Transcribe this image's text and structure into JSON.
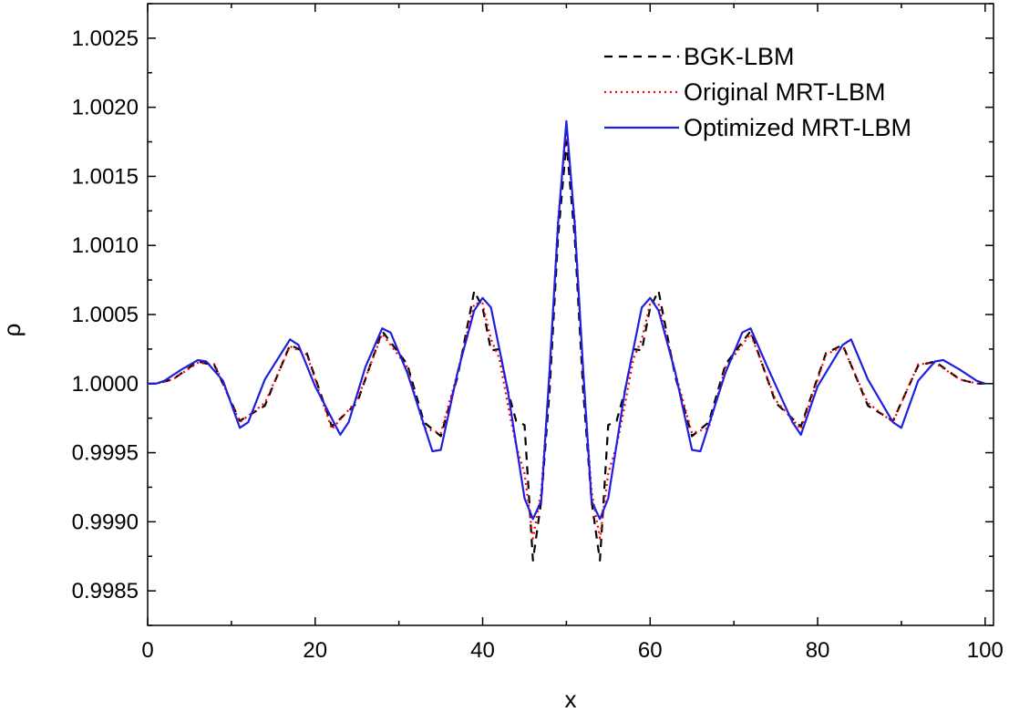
{
  "chart_data": {
    "type": "line",
    "xlabel": "x",
    "ylabel": "ρ",
    "xlim": [
      0,
      101
    ],
    "ylim": [
      0.99825,
      1.00275
    ],
    "xticks": [
      0,
      20,
      40,
      60,
      80,
      100
    ],
    "xtick_labels": [
      "0",
      "20",
      "40",
      "60",
      "80",
      "100"
    ],
    "yticks": [
      0.9985,
      0.999,
      0.9995,
      1.0,
      1.0005,
      1.001,
      1.0015,
      1.002,
      1.0025
    ],
    "ytick_labels": [
      "0.9985",
      "0.9990",
      "0.9995",
      "1.0000",
      "1.0005",
      "1.0010",
      "1.0015",
      "1.0020",
      "1.0025"
    ],
    "legend_position": "top-right",
    "grid": false,
    "series": [
      {
        "name": "BGK-LBM",
        "color": "#000000",
        "style": "dashed",
        "x": [
          0,
          1,
          3,
          6,
          8,
          11,
          14,
          17,
          19,
          22,
          25,
          28,
          31,
          33,
          35,
          37,
          39,
          40,
          41,
          42,
          43,
          44,
          45,
          46,
          47,
          48,
          49,
          50,
          51,
          52,
          53,
          54,
          55,
          56,
          57,
          58,
          59,
          60,
          61,
          63,
          65,
          67,
          69,
          72,
          75,
          78,
          81,
          83,
          86,
          89,
          92,
          94,
          97,
          99,
          100
        ],
        "y": [
          1.0,
          1.0,
          1.00003,
          1.00016,
          1.00013,
          0.99973,
          0.99984,
          1.00028,
          1.00022,
          0.99969,
          0.99986,
          1.00038,
          1.00014,
          0.99972,
          0.99962,
          1.00005,
          1.00067,
          1.00055,
          1.00024,
          1.00025,
          0.99995,
          0.99973,
          0.9997,
          0.99872,
          0.99915,
          0.99995,
          1.00105,
          1.00175,
          1.00105,
          0.99995,
          0.99915,
          0.99872,
          0.9997,
          0.99973,
          0.99995,
          1.00025,
          1.00024,
          1.00055,
          1.00067,
          1.00005,
          0.99962,
          0.99972,
          1.00014,
          1.00038,
          0.99986,
          0.99969,
          1.00022,
          1.00028,
          0.99984,
          0.99973,
          1.00013,
          1.00016,
          1.00003,
          1.0,
          1.0
        ]
      },
      {
        "name": "Original MRT-LBM",
        "color": "#ff0000",
        "style": "dotted",
        "x": [
          0,
          1,
          3,
          6,
          8,
          11,
          14,
          17,
          19,
          22,
          25,
          28,
          31,
          33,
          35,
          37,
          39,
          40,
          41,
          42,
          43,
          44,
          45,
          46,
          47,
          48,
          49,
          50,
          51,
          52,
          53,
          54,
          55,
          56,
          57,
          58,
          59,
          60,
          61,
          63,
          65,
          67,
          69,
          72,
          75,
          78,
          81,
          83,
          86,
          89,
          92,
          94,
          97,
          99,
          100
        ],
        "y": [
          1.0,
          1.0,
          1.00003,
          1.00015,
          1.00014,
          0.99972,
          0.99986,
          1.00027,
          1.00021,
          0.99967,
          0.99988,
          1.00036,
          1.00012,
          0.99968,
          0.99964,
          1.00008,
          1.00058,
          1.00058,
          1.00032,
          1.00018,
          0.99985,
          0.99955,
          0.99935,
          0.99888,
          0.99922,
          1.00005,
          1.00118,
          1.00182,
          1.00118,
          1.00005,
          0.99922,
          0.99888,
          0.99935,
          0.99955,
          0.99985,
          1.00018,
          1.00032,
          1.00058,
          1.00058,
          1.00008,
          0.99964,
          0.99968,
          1.00012,
          1.00036,
          0.99988,
          0.99967,
          1.00021,
          1.00027,
          0.99986,
          0.99972,
          1.00014,
          1.00015,
          1.00003,
          1.0,
          1.0
        ]
      },
      {
        "name": "Optimized MRT-LBM",
        "color": "#1f1fe0",
        "style": "solid",
        "x": [
          0,
          1,
          2,
          4,
          6,
          7,
          9,
          11,
          12,
          14,
          17,
          18,
          20,
          23,
          24,
          26,
          28,
          29,
          31,
          34,
          35,
          37,
          39,
          40,
          41,
          43,
          45,
          46,
          47,
          48,
          49,
          50,
          51,
          52,
          53,
          54,
          55,
          57,
          59,
          60,
          61,
          63,
          65,
          66,
          69,
          71,
          72,
          74,
          77,
          78,
          80,
          83,
          84,
          86,
          89,
          90,
          92,
          94,
          95,
          97,
          99,
          100
        ],
        "y": [
          1.0,
          1.0,
          1.00002,
          1.0001,
          1.00017,
          1.00016,
          1.00002,
          0.99968,
          0.99972,
          1.00003,
          1.00032,
          1.00028,
          0.99998,
          0.99963,
          0.99972,
          1.00012,
          1.0004,
          1.00037,
          1.00008,
          0.99951,
          0.99952,
          1.00008,
          1.00053,
          1.00062,
          1.00055,
          0.99995,
          0.99917,
          0.99902,
          0.99915,
          1.0001,
          1.00115,
          1.0019,
          1.00115,
          1.0001,
          0.99915,
          0.99902,
          0.99917,
          0.99995,
          1.00055,
          1.00062,
          1.00053,
          1.00008,
          0.99952,
          0.99951,
          1.00008,
          1.00037,
          1.0004,
          1.00012,
          0.99972,
          0.99963,
          0.99998,
          1.00028,
          1.00032,
          1.00003,
          0.99972,
          0.99968,
          1.00002,
          1.00016,
          1.00017,
          1.0001,
          1.00002,
          1.0
        ]
      }
    ]
  }
}
